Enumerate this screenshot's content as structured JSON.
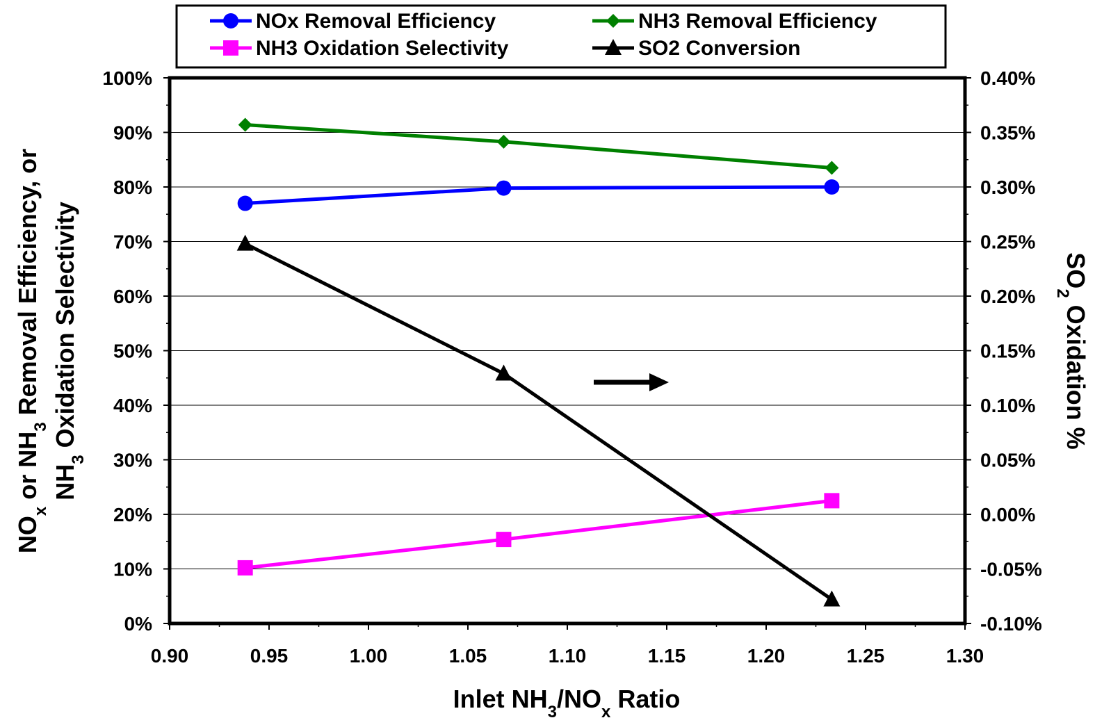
{
  "chart_data": {
    "type": "line",
    "title": "",
    "xlabel": {
      "parts": [
        {
          "t": "Inlet NH",
          "s": ""
        },
        {
          "t": "3",
          "s": "sub"
        },
        {
          "t": "/NO",
          "s": ""
        },
        {
          "t": "x",
          "s": "sub"
        },
        {
          "t": " Ratio",
          "s": ""
        }
      ]
    },
    "ylabel_left_line1": {
      "parts": [
        {
          "t": "NO",
          "s": ""
        },
        {
          "t": "x",
          "s": "sub"
        },
        {
          "t": " or NH",
          "s": ""
        },
        {
          "t": "3",
          "s": "sub"
        },
        {
          "t": " Removal Efficiency, or",
          "s": ""
        }
      ]
    },
    "ylabel_left_line2": {
      "parts": [
        {
          "t": "NH",
          "s": ""
        },
        {
          "t": "3",
          "s": "sub"
        },
        {
          "t": " Oxidation Selectivity",
          "s": ""
        }
      ]
    },
    "ylabel_right": {
      "parts": [
        {
          "t": "SO",
          "s": ""
        },
        {
          "t": "2",
          "s": "sub"
        },
        {
          "t": " Oxidation %",
          "s": ""
        }
      ]
    },
    "x_ticks": [
      "0.90",
      "0.95",
      "1.00",
      "1.05",
      "1.10",
      "1.15",
      "1.20",
      "1.25",
      "1.30"
    ],
    "xlim": [
      0.9,
      1.3
    ],
    "y_left_ticks": [
      "0%",
      "10%",
      "20%",
      "30%",
      "40%",
      "50%",
      "60%",
      "70%",
      "80%",
      "90%",
      "100%"
    ],
    "ylim_left": [
      0,
      100
    ],
    "y_right_ticks": [
      "-0.10%",
      "-0.05%",
      "0.00%",
      "0.05%",
      "0.10%",
      "0.15%",
      "0.20%",
      "0.25%",
      "0.30%",
      "0.35%",
      "0.40%"
    ],
    "ylim_right": [
      -0.1,
      0.4
    ],
    "grid": "horizontal",
    "legend_position": "top",
    "annotation": "right-pointing arrow indicating SO2 Conversion uses the right axis",
    "x": [
      0.938,
      1.068,
      1.233
    ],
    "series": [
      {
        "name": "NOx Removal Efficiency",
        "axis": "left",
        "color": "#0000ff",
        "marker": "circle",
        "values": [
          77.0,
          79.8,
          80.0
        ]
      },
      {
        "name": "NH3 Removal Efficiency",
        "axis": "left",
        "color": "#008000",
        "marker": "diamond",
        "values": [
          91.4,
          88.3,
          83.5
        ]
      },
      {
        "name": "NH3 Oxidation Selectivity",
        "axis": "left",
        "color": "#ff00ff",
        "marker": "square",
        "values": [
          10.2,
          15.4,
          22.5
        ]
      },
      {
        "name": "SO2 Conversion",
        "axis": "right",
        "color": "#000000",
        "marker": "triangle",
        "values": [
          0.248,
          0.129,
          -0.078
        ]
      }
    ]
  }
}
